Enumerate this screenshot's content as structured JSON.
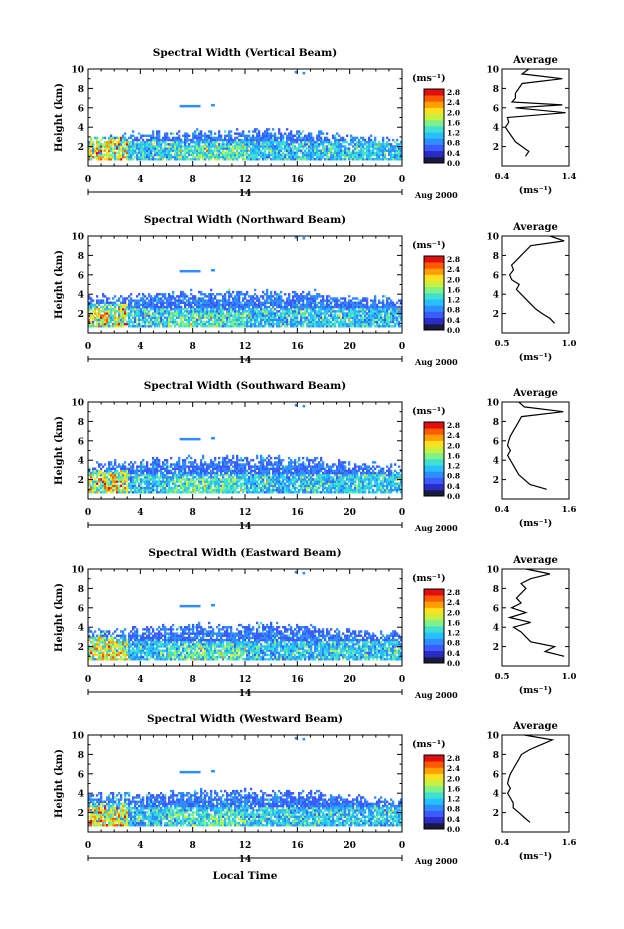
{
  "figure": {
    "xlabel": "Local Time",
    "colorbar_unit": "(ms⁻¹)",
    "date_label": "Aug 2000",
    "day_label": "14",
    "average_title": "Average",
    "avg_xlabel": "(ms⁻¹)"
  },
  "colormap": [
    "#1a1a40",
    "#2b2bc8",
    "#3b5bff",
    "#2f8dff",
    "#26c0ff",
    "#3fe0d0",
    "#7ff08a",
    "#c8f040",
    "#ffe020",
    "#ffa000",
    "#ff5a00",
    "#e01010"
  ],
  "colorbar_ticks": [
    "0.0",
    "0.4",
    "0.8",
    "1.2",
    "1.6",
    "2.0",
    "2.4",
    "2.8"
  ],
  "chart_data": [
    {
      "type": "heatmap",
      "title": "Spectral Width (Vertical Beam)",
      "ylabel": "Height (km)",
      "xlim": [
        0,
        24
      ],
      "ylim": [
        0,
        10
      ],
      "xticks": [
        "0",
        "4",
        "8",
        "12",
        "16",
        "20",
        "0"
      ],
      "yticks": [
        "2",
        "4",
        "6",
        "8",
        "10"
      ],
      "clim": [
        0,
        2.8
      ],
      "layer_top_km": 3.0,
      "avg_profile": {
        "xlim": [
          0.4,
          1.4
        ],
        "xticks": [
          "0.4",
          "1.4"
        ],
        "yticks": [
          "2",
          "4",
          "6",
          "8",
          "10"
        ],
        "height": [
          1,
          1.5,
          2,
          2.5,
          3,
          3.5,
          4,
          4.5,
          5,
          5.5,
          6,
          6.3,
          6.6,
          7,
          7.5,
          8,
          8.5,
          9,
          9.5,
          10
        ],
        "value": [
          0.75,
          0.8,
          0.7,
          0.6,
          0.55,
          0.5,
          0.45,
          0.5,
          0.48,
          1.35,
          0.6,
          1.3,
          0.55,
          0.6,
          0.6,
          0.65,
          0.7,
          1.3,
          0.7,
          0.8
        ]
      }
    },
    {
      "type": "heatmap",
      "title": "Spectral Width (Northward Beam)",
      "ylabel": "Height (km)",
      "xlim": [
        0,
        24
      ],
      "ylim": [
        0,
        10
      ],
      "xticks": [
        "0",
        "4",
        "8",
        "12",
        "16",
        "20",
        "0"
      ],
      "yticks": [
        "2",
        "4",
        "6",
        "8",
        "10"
      ],
      "clim": [
        0,
        2.8
      ],
      "layer_top_km": 3.6,
      "avg_profile": {
        "xlim": [
          0.3,
          1.0
        ],
        "xticks": [
          "0.5",
          "1.0"
        ],
        "yticks": [
          "2",
          "4",
          "6",
          "8",
          "10"
        ],
        "height": [
          1,
          1.5,
          2,
          2.5,
          3,
          3.5,
          4,
          4.5,
          5,
          5.5,
          6,
          6.5,
          7,
          7.5,
          8,
          8.5,
          9,
          9.5,
          10
        ],
        "value": [
          0.85,
          0.8,
          0.72,
          0.65,
          0.6,
          0.55,
          0.5,
          0.45,
          0.48,
          0.4,
          0.38,
          0.42,
          0.4,
          0.45,
          0.5,
          0.55,
          0.6,
          0.95,
          0.8
        ]
      }
    },
    {
      "type": "heatmap",
      "title": "Spectral Width (Southward Beam)",
      "ylabel": "Height (km)",
      "xlim": [
        0,
        24
      ],
      "ylim": [
        0,
        10
      ],
      "xticks": [
        "0",
        "4",
        "8",
        "12",
        "16",
        "20",
        "0"
      ],
      "yticks": [
        "2",
        "4",
        "6",
        "8",
        "10"
      ],
      "clim": [
        0,
        2.8
      ],
      "layer_top_km": 3.6,
      "avg_profile": {
        "xlim": [
          0.4,
          1.6
        ],
        "xticks": [
          "0.4",
          "1.6"
        ],
        "yticks": [
          "2",
          "4",
          "6",
          "8",
          "10"
        ],
        "height": [
          1,
          1.5,
          2,
          2.5,
          3,
          3.5,
          4,
          4.5,
          5,
          5.5,
          6,
          6.5,
          7,
          7.5,
          8,
          8.5,
          9,
          9.5,
          10
        ],
        "value": [
          1.2,
          0.9,
          0.8,
          0.7,
          0.65,
          0.6,
          0.55,
          0.5,
          0.55,
          0.5,
          0.52,
          0.55,
          0.6,
          0.65,
          0.7,
          0.75,
          1.5,
          0.8,
          0.7
        ]
      }
    },
    {
      "type": "heatmap",
      "title": "Spectral Width (Eastward Beam)",
      "ylabel": "Height (km)",
      "xlim": [
        0,
        24
      ],
      "ylim": [
        0,
        10
      ],
      "xticks": [
        "0",
        "4",
        "8",
        "12",
        "16",
        "20",
        "0"
      ],
      "yticks": [
        "2",
        "4",
        "6",
        "8",
        "10"
      ],
      "clim": [
        0,
        2.8
      ],
      "layer_top_km": 3.6,
      "avg_profile": {
        "xlim": [
          0.3,
          1.0
        ],
        "xticks": [
          "0.5",
          "1.0"
        ],
        "yticks": [
          "2",
          "4",
          "6",
          "8",
          "10"
        ],
        "height": [
          1,
          1.5,
          2,
          2.5,
          3,
          3.5,
          4,
          4.5,
          5,
          5.5,
          6,
          6.5,
          7,
          7.5,
          8,
          8.5,
          9,
          9.5,
          10
        ],
        "value": [
          0.95,
          0.75,
          0.85,
          0.6,
          0.55,
          0.5,
          0.42,
          0.6,
          0.38,
          0.55,
          0.4,
          0.5,
          0.45,
          0.5,
          0.55,
          0.5,
          0.6,
          0.8,
          0.55
        ]
      }
    },
    {
      "type": "heatmap",
      "title": "Spectral Width (Westward Beam)",
      "ylabel": "Height (km)",
      "xlim": [
        0,
        24
      ],
      "ylim": [
        0,
        10
      ],
      "xticks": [
        "0",
        "4",
        "8",
        "12",
        "16",
        "20",
        "0"
      ],
      "yticks": [
        "2",
        "4",
        "6",
        "8",
        "10"
      ],
      "clim": [
        0,
        2.8
      ],
      "layer_top_km": 3.6,
      "avg_profile": {
        "xlim": [
          0.4,
          1.6
        ],
        "xticks": [
          "0.4",
          "1.6"
        ],
        "yticks": [
          "2",
          "4",
          "6",
          "8",
          "10"
        ],
        "height": [
          1,
          1.5,
          2,
          2.5,
          3,
          3.5,
          4,
          4.5,
          5,
          5.5,
          6,
          6.5,
          7,
          7.5,
          8,
          8.5,
          9,
          9.5,
          10
        ],
        "value": [
          0.9,
          0.8,
          0.7,
          0.6,
          0.6,
          0.55,
          0.5,
          0.55,
          0.5,
          0.52,
          0.55,
          0.6,
          0.65,
          0.7,
          0.75,
          0.9,
          1.1,
          1.3,
          0.8
        ]
      }
    }
  ]
}
